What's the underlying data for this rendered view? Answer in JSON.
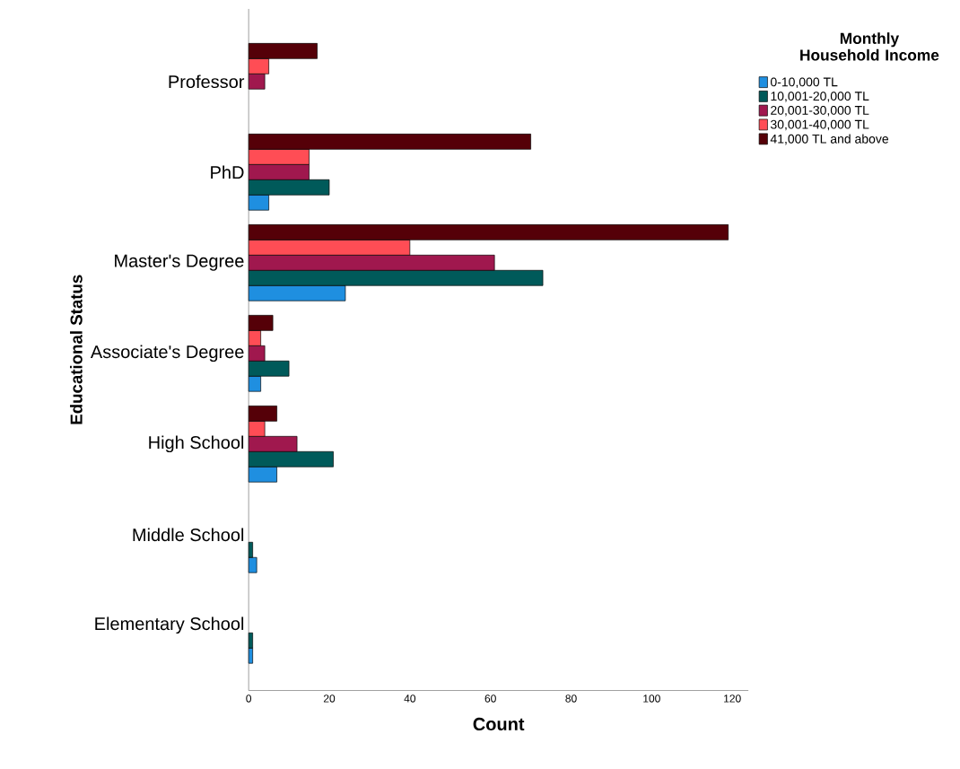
{
  "chart_data": {
    "type": "bar",
    "orientation": "horizontal",
    "xlabel": "Count",
    "ylabel": "Educational Status",
    "legend_title": "Monthly Household Income",
    "legend": "top right",
    "categories": [
      "Professor",
      "PhD",
      "Master's Degree",
      "Associate's Degree",
      "High School",
      "Middle School",
      "Elementary School"
    ],
    "series": [
      {
        "name": "0-10,000 TL",
        "color": "#1f8fe0",
        "values": [
          0,
          5,
          24,
          3,
          7,
          2,
          1
        ]
      },
      {
        "name": "10,001-20,000 TL",
        "color": "#005a5a",
        "values": [
          0,
          20,
          73,
          10,
          21,
          1,
          1
        ]
      },
      {
        "name": "20,001-30,000 TL",
        "color": "#a0184e",
        "values": [
          4,
          15,
          61,
          4,
          12,
          0,
          0
        ]
      },
      {
        "name": "30,001-40,000 TL",
        "color": "#ff4d55",
        "values": [
          5,
          15,
          40,
          3,
          4,
          0,
          0
        ]
      },
      {
        "name": "41,000 TL and above",
        "color": "#550008",
        "values": [
          17,
          70,
          119,
          6,
          7,
          0,
          0
        ]
      }
    ],
    "xlim": [
      0,
      124
    ],
    "xticks": [
      0,
      20,
      40,
      60,
      80,
      100,
      120
    ]
  }
}
